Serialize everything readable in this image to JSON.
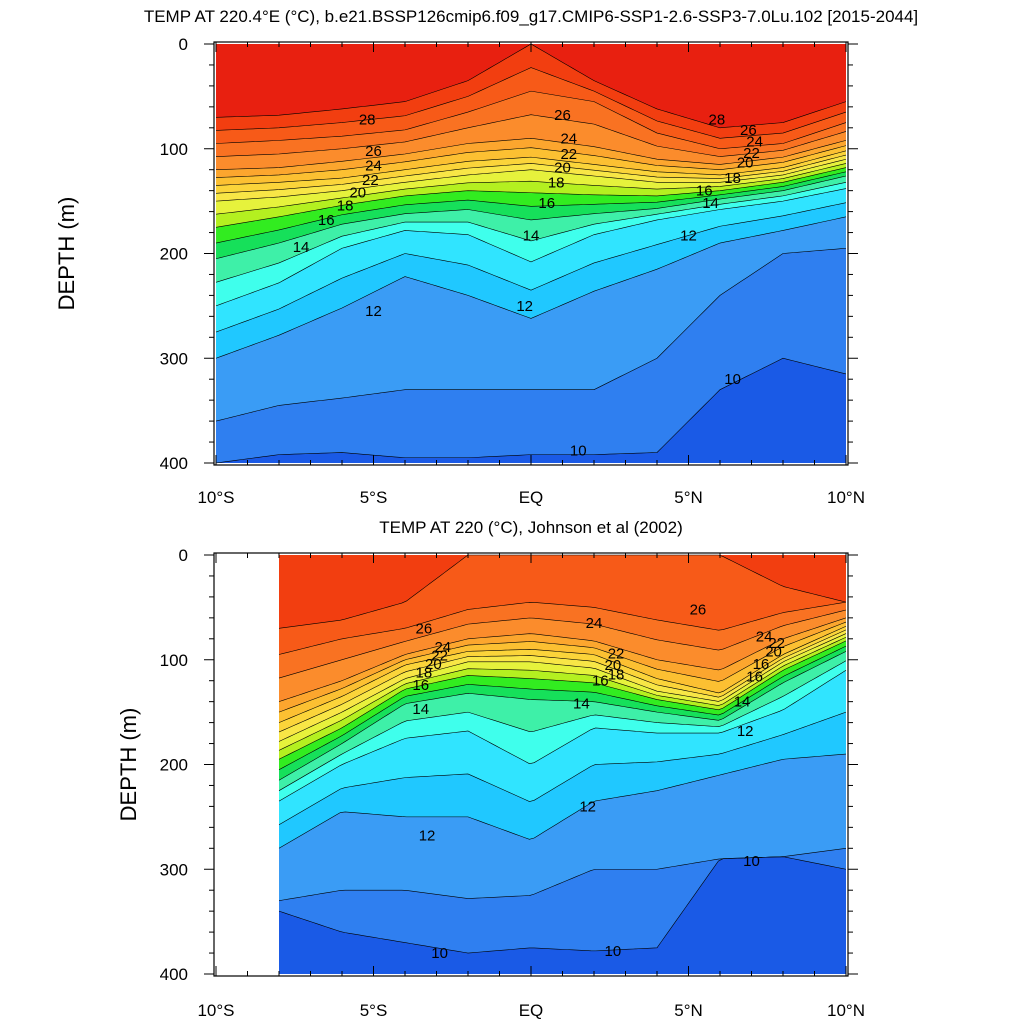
{
  "chart_data": [
    {
      "type": "contour",
      "title": "TEMP AT 220.4°E (°C), b.e21.BSSP126cmip6.f09_g17.CMIP6-SSP1-2.6-SSP3-7.0Lu.102 [2015-2044]",
      "ylabel": "DEPTH (m)",
      "xlabel": "",
      "xlim": [
        -10,
        10
      ],
      "ylim": [
        400,
        0
      ],
      "x_ticks": [
        -10,
        -5,
        0,
        5,
        10
      ],
      "x_tick_labels": [
        "10°S",
        "5°S",
        "EQ",
        "5°N",
        "10°N"
      ],
      "y_ticks": [
        0,
        100,
        200,
        300,
        400
      ],
      "y_tick_labels": [
        "0",
        "100",
        "200",
        "300",
        "400"
      ],
      "data_x_range": [
        -10,
        10
      ],
      "levels": [
        10,
        11,
        12,
        13,
        14,
        15,
        16,
        17,
        18,
        19,
        20,
        21,
        22,
        23,
        24,
        25,
        26,
        27,
        28,
        29
      ],
      "isotherm_depths": {
        "x": [
          -10,
          -8,
          -6,
          -4,
          -2,
          0,
          2,
          4,
          6,
          8,
          10
        ],
        "t28": [
          70,
          68,
          62,
          55,
          35,
          0,
          35,
          62,
          80,
          75,
          55
        ],
        "t26": [
          95,
          92,
          88,
          82,
          65,
          45,
          55,
          85,
          100,
          95,
          75
        ],
        "t24": [
          120,
          118,
          112,
          105,
          95,
          90,
          98,
          110,
          115,
          108,
          92
        ],
        "t22": [
          135,
          132,
          128,
          120,
          112,
          108,
          115,
          122,
          125,
          118,
          102
        ],
        "t20": [
          150,
          146,
          140,
          132,
          125,
          120,
          126,
          132,
          132,
          125,
          110
        ],
        "t18": [
          175,
          165,
          154,
          145,
          140,
          142,
          144,
          145,
          140,
          132,
          118
        ],
        "t16": [
          205,
          190,
          172,
          162,
          158,
          168,
          162,
          157,
          148,
          140,
          126
        ],
        "t14": [
          250,
          228,
          195,
          178,
          182,
          208,
          182,
          168,
          158,
          150,
          138
        ],
        "t12": [
          300,
          278,
          252,
          222,
          240,
          262,
          236,
          215,
          190,
          178,
          165
        ],
        "t11": [
          360,
          345,
          338,
          330,
          330,
          330,
          330,
          300,
          240,
          200,
          195
        ],
        "t10": [
          400,
          392,
          390,
          395,
          395,
          392,
          392,
          390,
          330,
          300,
          315
        ]
      },
      "contour_labels": [
        {
          "text": "28",
          "x": -5.2,
          "y": 72
        },
        {
          "text": "26",
          "x": -5.0,
          "y": 102
        },
        {
          "text": "24",
          "x": -5.0,
          "y": 116
        },
        {
          "text": "22",
          "x": -5.1,
          "y": 130
        },
        {
          "text": "20",
          "x": -5.5,
          "y": 142
        },
        {
          "text": "18",
          "x": -5.9,
          "y": 154
        },
        {
          "text": "16",
          "x": -6.5,
          "y": 168
        },
        {
          "text": "14",
          "x": -7.3,
          "y": 194
        },
        {
          "text": "12",
          "x": -5.0,
          "y": 255
        },
        {
          "text": "26",
          "x": 1.0,
          "y": 68
        },
        {
          "text": "24",
          "x": 1.2,
          "y": 90
        },
        {
          "text": "22",
          "x": 1.2,
          "y": 105
        },
        {
          "text": "20",
          "x": 1.0,
          "y": 118
        },
        {
          "text": "18",
          "x": 0.8,
          "y": 132
        },
        {
          "text": "16",
          "x": 0.5,
          "y": 152
        },
        {
          "text": "14",
          "x": 0,
          "y": 183
        },
        {
          "text": "12",
          "x": -0.2,
          "y": 250
        },
        {
          "text": "28",
          "x": 5.9,
          "y": 72
        },
        {
          "text": "26",
          "x": 6.9,
          "y": 82
        },
        {
          "text": "24",
          "x": 7.1,
          "y": 93
        },
        {
          "text": "22",
          "x": 7.0,
          "y": 104
        },
        {
          "text": "20",
          "x": 6.8,
          "y": 113
        },
        {
          "text": "18",
          "x": 6.4,
          "y": 128
        },
        {
          "text": "16",
          "x": 5.5,
          "y": 140
        },
        {
          "text": "14",
          "x": 5.7,
          "y": 152
        },
        {
          "text": "12",
          "x": 5.0,
          "y": 183
        },
        {
          "text": "10",
          "x": 6.4,
          "y": 320
        },
        {
          "text": "10",
          "x": 1.5,
          "y": 388
        }
      ]
    },
    {
      "type": "contour",
      "title": "TEMP AT 220 (°C), Johnson et al (2002)",
      "ylabel": "DEPTH (m)",
      "xlabel": "",
      "xlim": [
        -10,
        10
      ],
      "ylim": [
        400,
        0
      ],
      "x_ticks": [
        -10,
        -5,
        0,
        5,
        10
      ],
      "x_tick_labels": [
        "10°S",
        "5°S",
        "EQ",
        "5°N",
        "10°N"
      ],
      "y_ticks": [
        0,
        100,
        200,
        300,
        400
      ],
      "y_tick_labels": [
        "0",
        "100",
        "200",
        "300",
        "400"
      ],
      "data_x_range": [
        -8,
        10
      ],
      "levels": [
        10,
        11,
        12,
        13,
        14,
        15,
        16,
        17,
        18,
        19,
        20,
        21,
        22,
        23,
        24,
        25,
        26,
        27,
        28
      ],
      "isotherm_depths": {
        "x": [
          -8,
          -6,
          -4,
          -2,
          0,
          2,
          4,
          6,
          8,
          10
        ],
        "t27": [
          70,
          62,
          45,
          0,
          0,
          0,
          0,
          0,
          30,
          45
        ],
        "t26": [
          95,
          80,
          70,
          52,
          45,
          50,
          62,
          72,
          55,
          45
        ],
        "t24": [
          140,
          120,
          95,
          80,
          75,
          82,
          100,
          110,
          80,
          60
        ],
        "t22": [
          160,
          135,
          105,
          92,
          90,
          95,
          118,
          132,
          95,
          68
        ],
        "t20": [
          178,
          150,
          118,
          102,
          102,
          108,
          130,
          140,
          102,
          75
        ],
        "t18": [
          195,
          165,
          128,
          115,
          118,
          122,
          138,
          148,
          110,
          82
        ],
        "t16": [
          215,
          180,
          142,
          132,
          138,
          140,
          150,
          158,
          122,
          92
        ],
        "t14": [
          235,
          200,
          175,
          168,
          200,
          165,
          170,
          170,
          148,
          110
        ],
        "t12": [
          280,
          245,
          250,
          250,
          272,
          235,
          225,
          210,
          195,
          190
        ],
        "t11": [
          330,
          320,
          320,
          328,
          325,
          300,
          300,
          290,
          288,
          280
        ],
        "t10": [
          340,
          360,
          370,
          380,
          375,
          378,
          375,
          290,
          288,
          300
        ]
      },
      "contour_labels": [
        {
          "text": "26",
          "x": -3.4,
          "y": 70
        },
        {
          "text": "24",
          "x": -2.8,
          "y": 88
        },
        {
          "text": "22",
          "x": -2.9,
          "y": 96
        },
        {
          "text": "20",
          "x": -3.1,
          "y": 104
        },
        {
          "text": "18",
          "x": -3.4,
          "y": 112
        },
        {
          "text": "16",
          "x": -3.5,
          "y": 124
        },
        {
          "text": "14",
          "x": -3.5,
          "y": 147
        },
        {
          "text": "12",
          "x": -3.3,
          "y": 268
        },
        {
          "text": "10",
          "x": -2.9,
          "y": 380
        },
        {
          "text": "24",
          "x": 2.0,
          "y": 65
        },
        {
          "text": "22",
          "x": 2.7,
          "y": 94
        },
        {
          "text": "20",
          "x": 2.6,
          "y": 105
        },
        {
          "text": "18",
          "x": 2.7,
          "y": 114
        },
        {
          "text": "16",
          "x": 2.2,
          "y": 120
        },
        {
          "text": "14",
          "x": 1.6,
          "y": 142
        },
        {
          "text": "12",
          "x": 1.8,
          "y": 240
        },
        {
          "text": "10",
          "x": 2.6,
          "y": 378
        },
        {
          "text": "26",
          "x": 5.3,
          "y": 52
        },
        {
          "text": "24",
          "x": 7.4,
          "y": 78
        },
        {
          "text": "22",
          "x": 7.8,
          "y": 84
        },
        {
          "text": "20",
          "x": 7.7,
          "y": 92
        },
        {
          "text": "16",
          "x": 7.3,
          "y": 104
        },
        {
          "text": "16",
          "x": 7.1,
          "y": 116
        },
        {
          "text": "14",
          "x": 6.7,
          "y": 140
        },
        {
          "text": "12",
          "x": 6.8,
          "y": 168
        },
        {
          "text": "10",
          "x": 7.0,
          "y": 292
        }
      ]
    }
  ]
}
